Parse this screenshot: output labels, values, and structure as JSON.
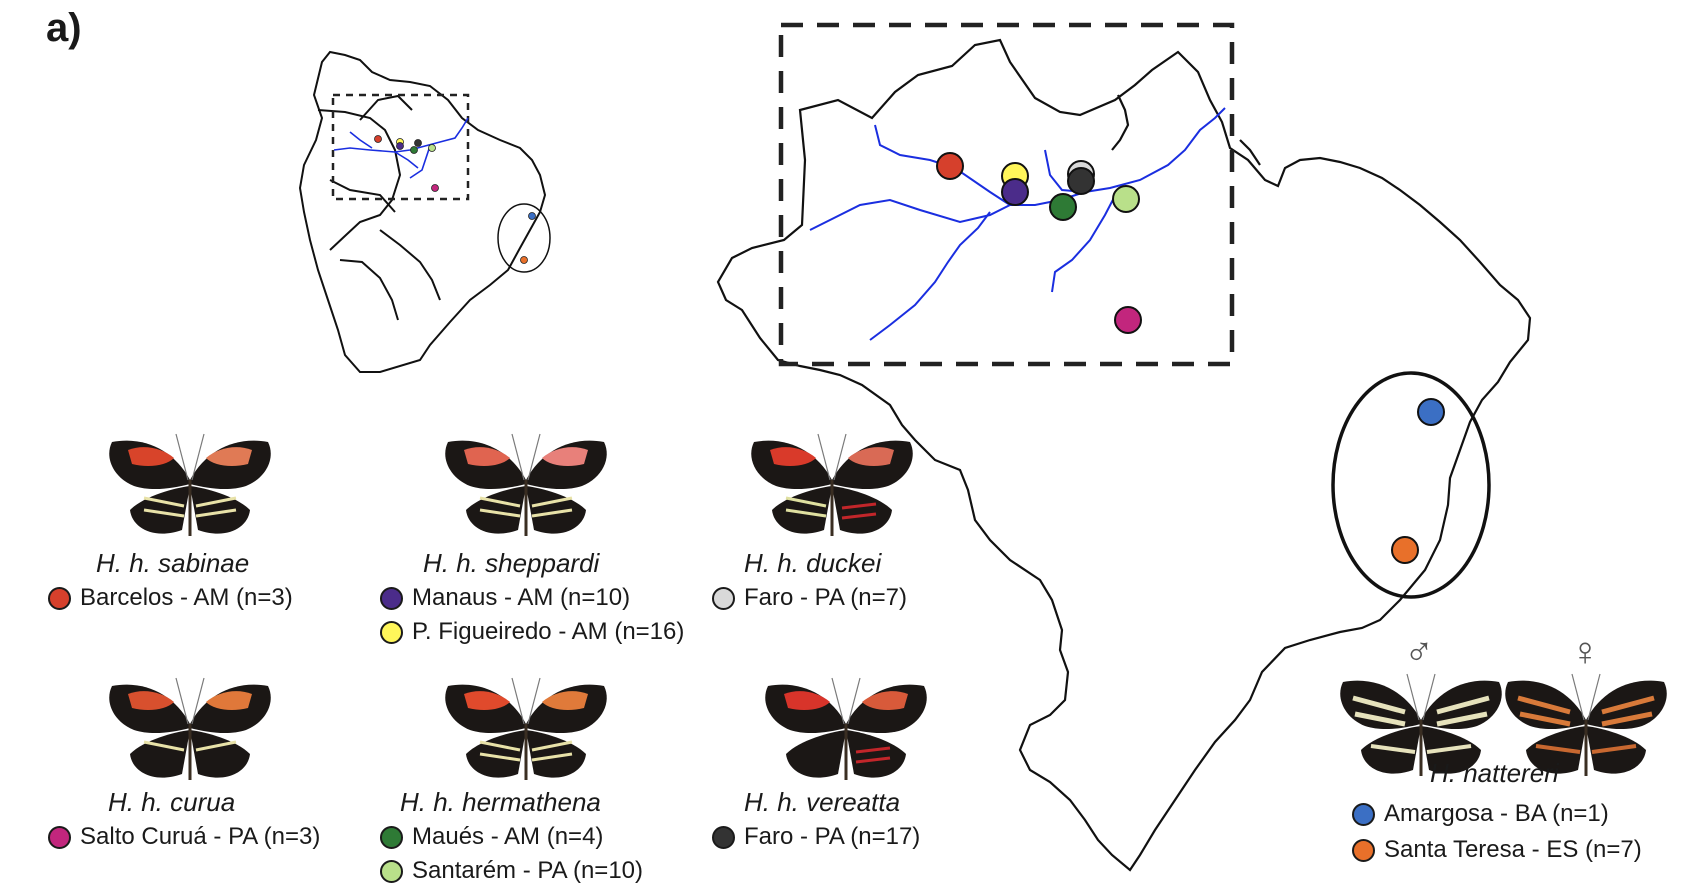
{
  "panel_label": "a)",
  "colors": {
    "barcelos": "#d6402c",
    "manaus": "#4b2c8a",
    "figueiredo": "#fff65a",
    "faro_duckei": "#d9d9d9",
    "faro_vereatta": "#333333",
    "maues": "#2e7a35",
    "santarem": "#b9e08a",
    "salto_curua": "#c2267d",
    "amargosa": "#3b6fc4",
    "santa_teresa": "#e8702a",
    "river": "#1a2ee0"
  },
  "taxa": [
    {
      "id": "sabinae",
      "name": "H. h. sabinae",
      "entries": [
        {
          "color": "barcelos",
          "label": "Barcelos - AM (n=3)"
        }
      ]
    },
    {
      "id": "sheppardi",
      "name": "H. h. sheppardi",
      "entries": [
        {
          "color": "manaus",
          "label": "Manaus - AM (n=10)"
        },
        {
          "color": "figueiredo",
          "label": "P. Figueiredo - AM (n=16)"
        }
      ]
    },
    {
      "id": "duckei",
      "name": "H. h. duckei",
      "entries": [
        {
          "color": "faro_duckei",
          "label": "Faro - PA (n=7)"
        }
      ]
    },
    {
      "id": "curua",
      "name": "H. h. curua",
      "entries": [
        {
          "color": "salto_curua",
          "label": "Salto Curuá - PA (n=3)"
        }
      ]
    },
    {
      "id": "hermathena",
      "name": "H. h. hermathena",
      "entries": [
        {
          "color": "maues",
          "label": "Maués - AM (n=4)"
        },
        {
          "color": "santarem",
          "label": "Santarém - PA (n=10)"
        }
      ]
    },
    {
      "id": "vereatta",
      "name": "H. h. vereatta",
      "entries": [
        {
          "color": "faro_vereatta",
          "label": "Faro - PA (n=17)"
        }
      ]
    },
    {
      "id": "nattereri",
      "name": "H. nattereri",
      "entries": [
        {
          "color": "amargosa",
          "label": "Amargosa - BA (n=1)"
        },
        {
          "color": "santa_teresa",
          "label": "Santa Teresa - ES (n=7)"
        }
      ]
    }
  ],
  "sex_symbols": {
    "male": "♂",
    "female": "♀"
  }
}
